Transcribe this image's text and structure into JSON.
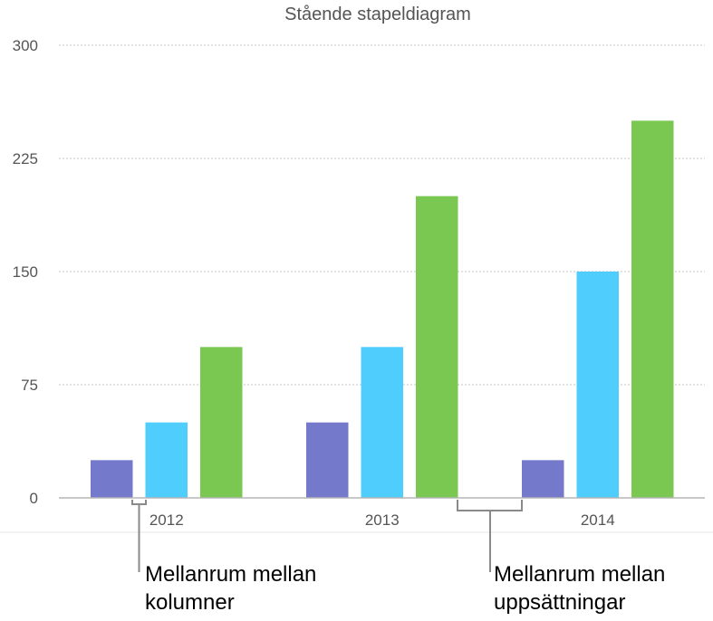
{
  "chart_data": {
    "type": "bar",
    "title": "Stående stapeldiagram",
    "categories": [
      "2012",
      "2013",
      "2014"
    ],
    "series": [
      {
        "values": [
          25,
          50,
          25
        ],
        "color": "#7479cc"
      },
      {
        "values": [
          50,
          100,
          150
        ],
        "color": "#4fcdfd"
      },
      {
        "values": [
          100,
          200,
          250
        ],
        "color": "#7ac852"
      }
    ],
    "ylim": [
      0,
      300
    ],
    "yticks": [
      0,
      75,
      150,
      225,
      300
    ],
    "grid": true,
    "annotations": [
      {
        "line1": "Mellanrum mellan",
        "line2": "kolumner"
      },
      {
        "line1": "Mellanrum mellan",
        "line2": "uppsättningar"
      }
    ]
  }
}
